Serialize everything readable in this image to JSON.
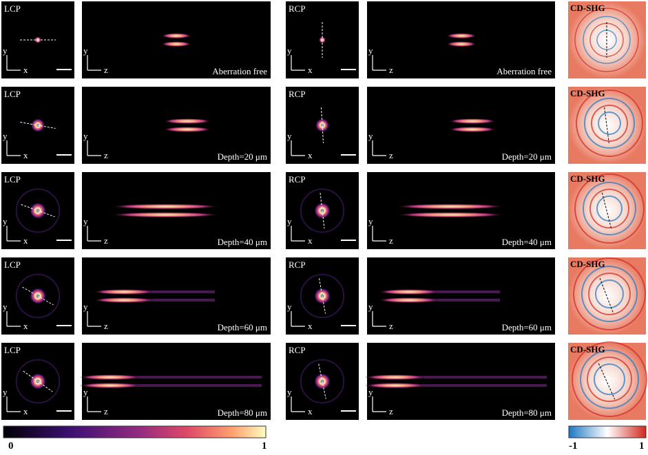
{
  "rows": [
    {
      "lcp_label": "LCP",
      "rcp_label": "RCP",
      "cd_label": "CD-SHG",
      "condition": "Aberration free"
    },
    {
      "lcp_label": "LCP",
      "rcp_label": "RCP",
      "cd_label": "CD-SHG",
      "condition": "Depth=20 μm"
    },
    {
      "lcp_label": "LCP",
      "rcp_label": "RCP",
      "cd_label": "CD-SHG",
      "condition": "Depth=40 μm"
    },
    {
      "lcp_label": "LCP",
      "rcp_label": "RCP",
      "cd_label": "CD-SHG",
      "condition": "Depth=60 μm"
    },
    {
      "lcp_label": "LCP",
      "rcp_label": "RCP",
      "cd_label": "CD-SHG",
      "condition": "Depth=80 μm"
    }
  ],
  "axis_labels": {
    "xy_vertical": "y",
    "xy_horizontal": "x",
    "xz_vertical": "y",
    "xz_horizontal": "z"
  },
  "colorbars": {
    "intensity": {
      "min": 0,
      "max": 1
    },
    "cd": {
      "min": -1,
      "max": 1
    }
  }
}
